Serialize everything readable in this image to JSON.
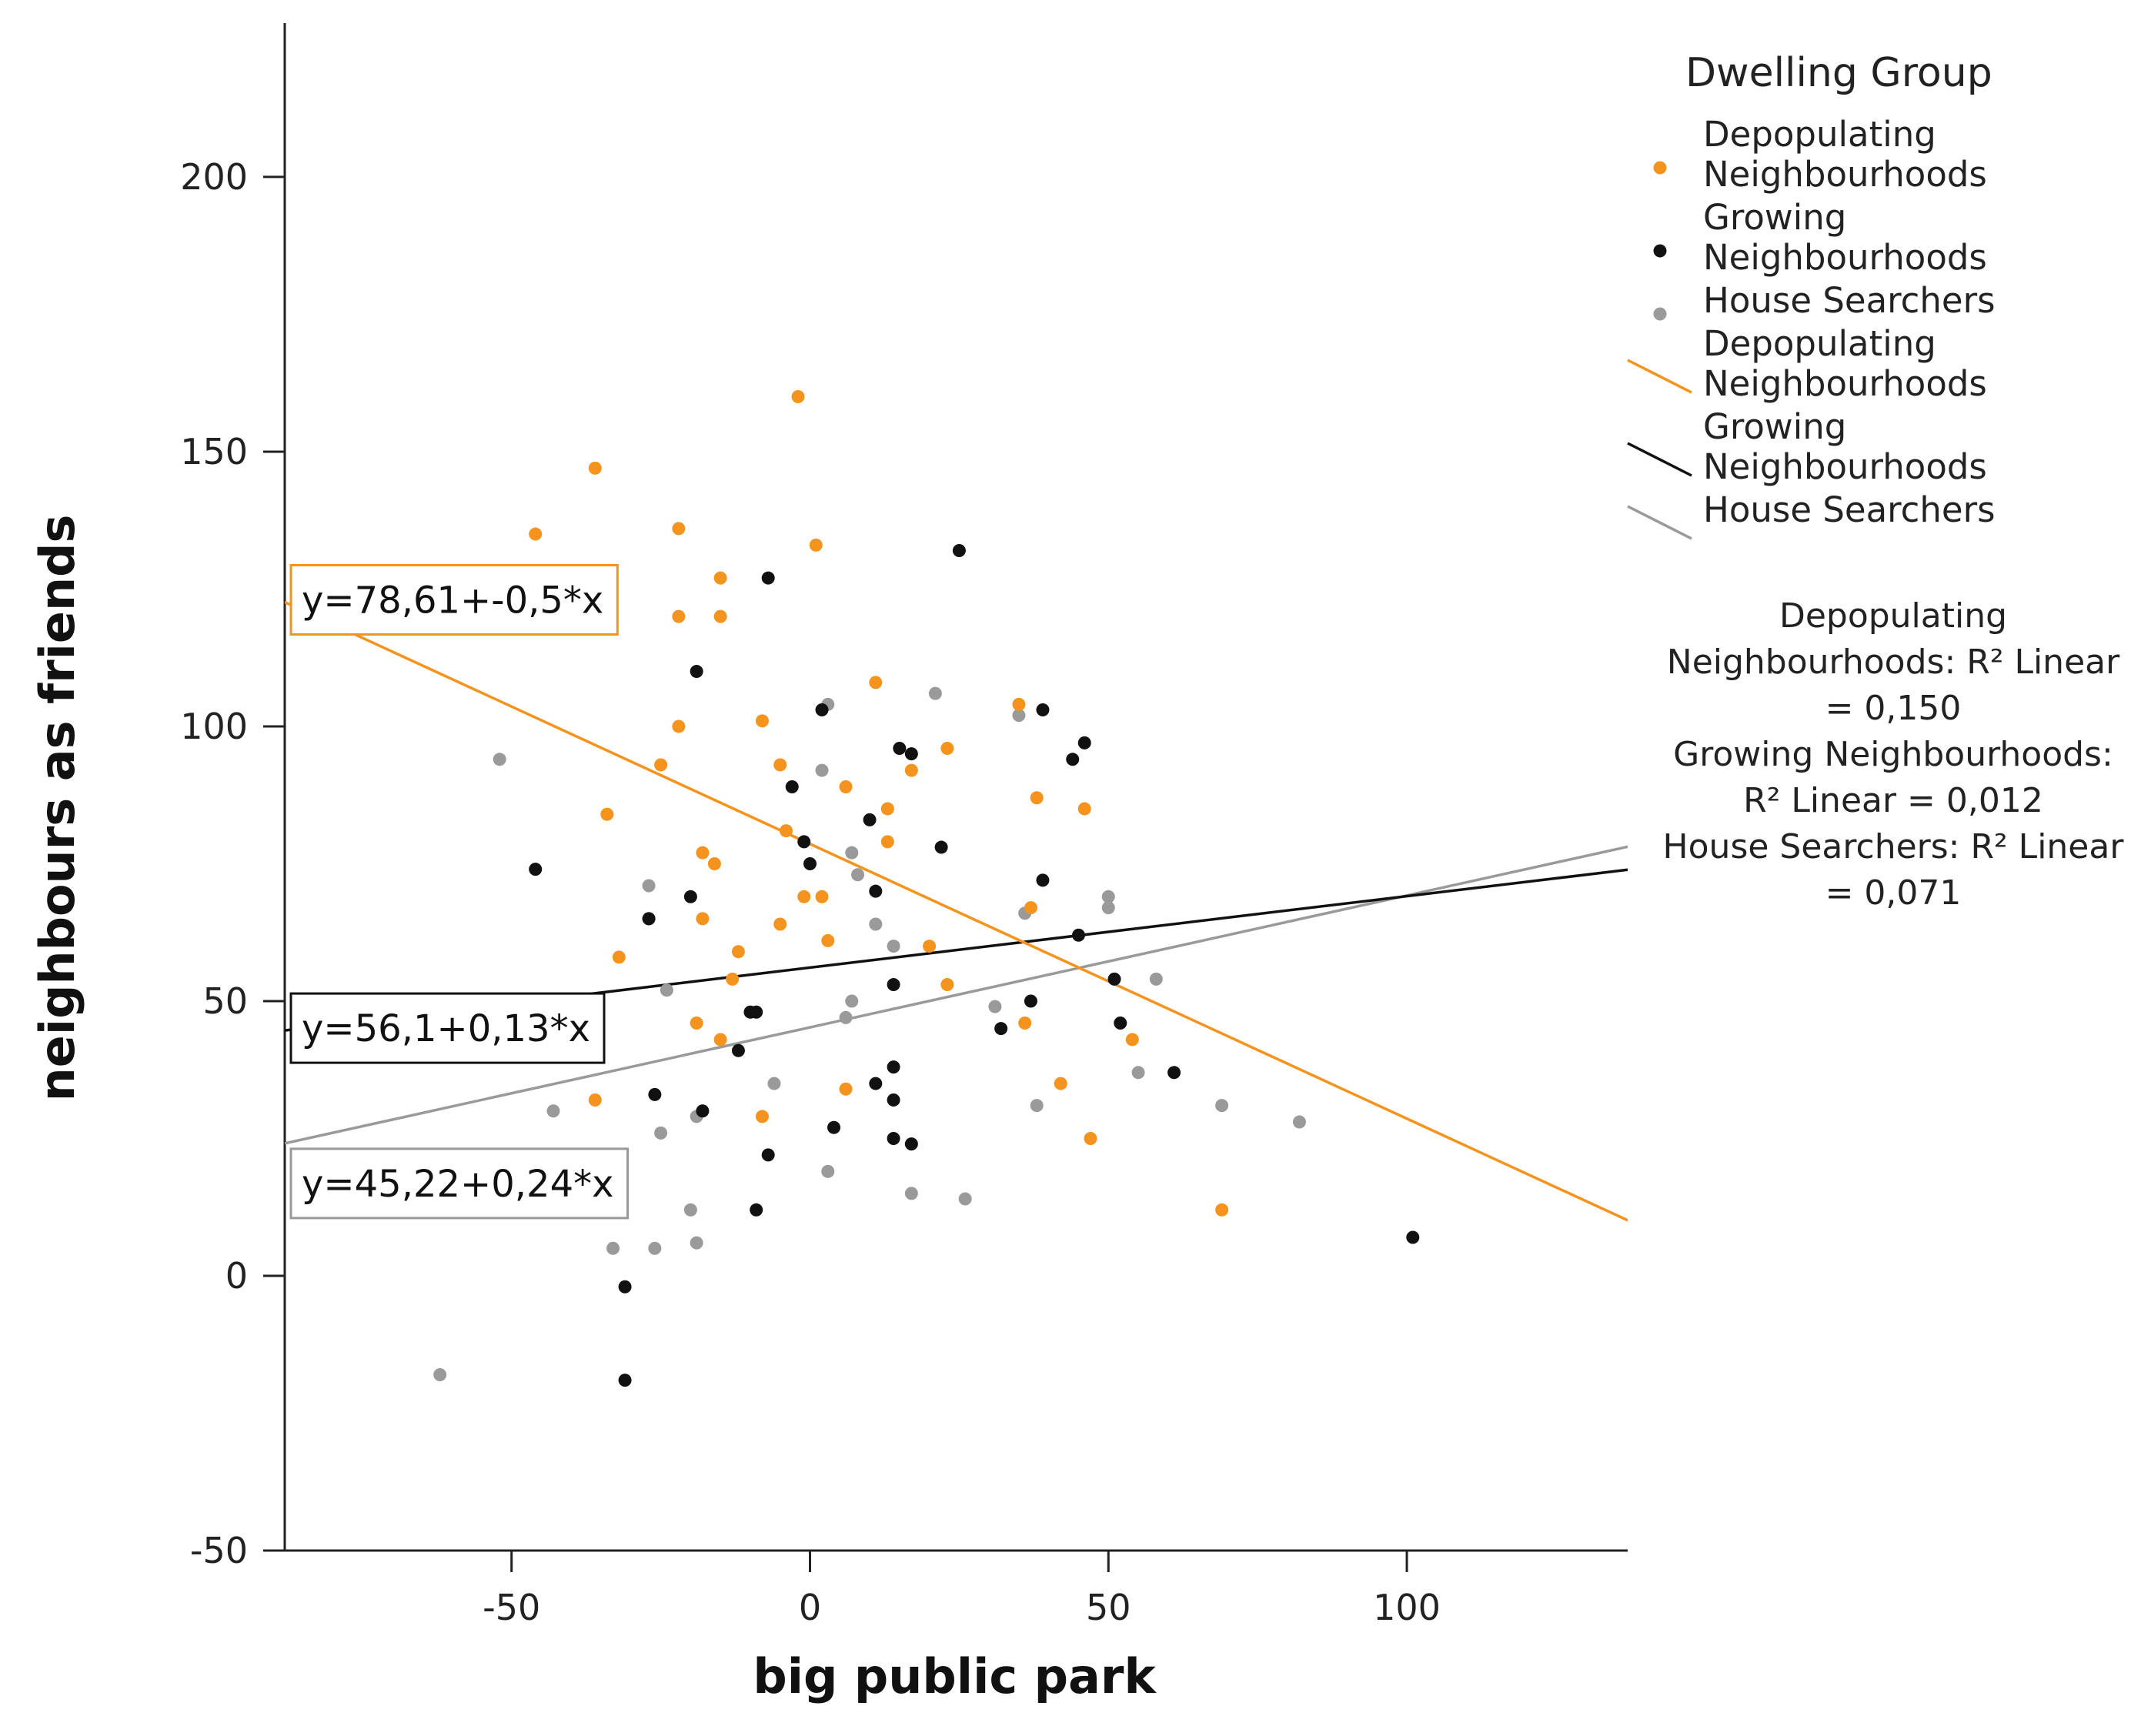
{
  "chart_data": {
    "type": "scatter",
    "xlabel": "big public park",
    "ylabel": "neighbours as friends",
    "xlim": [
      -88,
      137
    ],
    "ylim": [
      -50,
      228
    ],
    "xticks": [
      -50,
      0,
      50,
      100
    ],
    "yticks": [
      -50,
      0,
      50,
      100,
      150,
      200
    ],
    "xtick_labels": [
      "-50",
      "0",
      "50",
      "100"
    ],
    "ytick_labels": [
      "-50",
      "0",
      "50",
      "100",
      "150",
      "200"
    ],
    "grid": false,
    "legend": {
      "title": "Dwelling Group",
      "placement": "top-right",
      "entries": [
        {
          "kind": "marker",
          "series": 0,
          "lines": [
            "Depopulating",
            "Neighbourhoods"
          ]
        },
        {
          "kind": "marker",
          "series": 1,
          "lines": [
            "Growing",
            "Neighbourhoods"
          ]
        },
        {
          "kind": "marker",
          "series": 2,
          "lines": [
            "House Searchers"
          ]
        },
        {
          "kind": "line",
          "series": 0,
          "lines": [
            "Depopulating",
            "Neighbourhoods"
          ]
        },
        {
          "kind": "line",
          "series": 1,
          "lines": [
            "Growing",
            "Neighbourhoods"
          ]
        },
        {
          "kind": "line",
          "series": 2,
          "lines": [
            "House Searchers"
          ]
        }
      ]
    },
    "r2_annotation": [
      "Depopulating",
      "Neighbourhoods: R² Linear",
      "= 0,150",
      "Growing Neighbourhoods:",
      "R² Linear = 0,012",
      "House Searchers: R² Linear",
      "= 0,071"
    ],
    "series": [
      {
        "name": "Depopulating Neighbourhoods",
        "color": "#f4931e",
        "fit": {
          "intercept": 78.61,
          "slope": -0.5,
          "label": "y=78,61+-0,5*x"
        },
        "points": [
          [
            -2,
            160
          ],
          [
            -36,
            147
          ],
          [
            -46,
            135
          ],
          [
            -22,
            136
          ],
          [
            1,
            133
          ],
          [
            -15,
            127
          ],
          [
            -22,
            120
          ],
          [
            -15,
            120
          ],
          [
            -8,
            101
          ],
          [
            -22,
            100
          ],
          [
            -25,
            93
          ],
          [
            -5,
            93
          ],
          [
            11,
            108
          ],
          [
            35,
            104
          ],
          [
            23,
            96
          ],
          [
            6,
            89
          ],
          [
            17,
            92
          ],
          [
            13,
            85
          ],
          [
            -4,
            81
          ],
          [
            46,
            85
          ],
          [
            38,
            87
          ],
          [
            -18,
            77
          ],
          [
            -16,
            75
          ],
          [
            13,
            79
          ],
          [
            -1,
            69
          ],
          [
            2,
            69
          ],
          [
            -34,
            84
          ],
          [
            -32,
            58
          ],
          [
            -12,
            59
          ],
          [
            -18,
            65
          ],
          [
            3,
            61
          ],
          [
            20,
            60
          ],
          [
            -5,
            64
          ],
          [
            37,
            67
          ],
          [
            -13,
            54
          ],
          [
            23,
            53
          ],
          [
            -19,
            46
          ],
          [
            -15,
            43
          ],
          [
            -8,
            29
          ],
          [
            -36,
            32
          ],
          [
            6,
            34
          ],
          [
            36,
            46
          ],
          [
            42,
            35
          ],
          [
            47,
            25
          ],
          [
            54,
            43
          ],
          [
            69,
            12
          ]
        ]
      },
      {
        "name": "Growing Neighbourhoods",
        "color": "#111111",
        "fit": {
          "intercept": 56.1,
          "slope": 0.13,
          "label": "y=56,1+0,13*x"
        },
        "points": [
          [
            25,
            132
          ],
          [
            -7,
            127
          ],
          [
            -19,
            110
          ],
          [
            2,
            103
          ],
          [
            39,
            103
          ],
          [
            15,
            96
          ],
          [
            17,
            95
          ],
          [
            46,
            97
          ],
          [
            44,
            94
          ],
          [
            -3,
            89
          ],
          [
            10,
            83
          ],
          [
            -1,
            79
          ],
          [
            0,
            75
          ],
          [
            22,
            78
          ],
          [
            -46,
            74
          ],
          [
            39,
            72
          ],
          [
            11,
            70
          ],
          [
            -20,
            69
          ],
          [
            -27,
            65
          ],
          [
            -27,
            65
          ],
          [
            45,
            62
          ],
          [
            14,
            53
          ],
          [
            51,
            54
          ],
          [
            -10,
            48
          ],
          [
            -12,
            41
          ],
          [
            -9,
            48
          ],
          [
            32,
            45
          ],
          [
            37,
            50
          ],
          [
            52,
            46
          ],
          [
            -26,
            33
          ],
          [
            -18,
            30
          ],
          [
            14,
            38
          ],
          [
            14,
            32
          ],
          [
            11,
            35
          ],
          [
            4,
            27
          ],
          [
            14,
            25
          ],
          [
            17,
            24
          ],
          [
            -7,
            22
          ],
          [
            61,
            37
          ],
          [
            -9,
            12
          ],
          [
            -31,
            -2
          ],
          [
            -31,
            -19
          ],
          [
            101,
            7
          ]
        ]
      },
      {
        "name": "House Searchers",
        "color": "#9a9a9a",
        "fit": {
          "intercept": 45.22,
          "slope": 0.24,
          "label": "y=45,22+0,24*x"
        },
        "points": [
          [
            21,
            106
          ],
          [
            35,
            102
          ],
          [
            -52,
            94
          ],
          [
            2,
            92
          ],
          [
            3,
            104
          ],
          [
            7,
            77
          ],
          [
            8,
            73
          ],
          [
            -27,
            71
          ],
          [
            36,
            66
          ],
          [
            50,
            69
          ],
          [
            50,
            67
          ],
          [
            11,
            64
          ],
          [
            14,
            60
          ],
          [
            -24,
            52
          ],
          [
            7,
            50
          ],
          [
            31,
            49
          ],
          [
            6,
            47
          ],
          [
            -6,
            35
          ],
          [
            -43,
            30
          ],
          [
            -25,
            26
          ],
          [
            -19,
            29
          ],
          [
            58,
            54
          ],
          [
            55,
            37
          ],
          [
            38,
            31
          ],
          [
            69,
            31
          ],
          [
            82,
            28
          ],
          [
            3,
            19
          ],
          [
            17,
            15
          ],
          [
            26,
            14
          ],
          [
            -20,
            12
          ],
          [
            -33,
            5
          ],
          [
            -26,
            5
          ],
          [
            -19,
            6
          ],
          [
            -62,
            -18
          ]
        ]
      }
    ]
  }
}
